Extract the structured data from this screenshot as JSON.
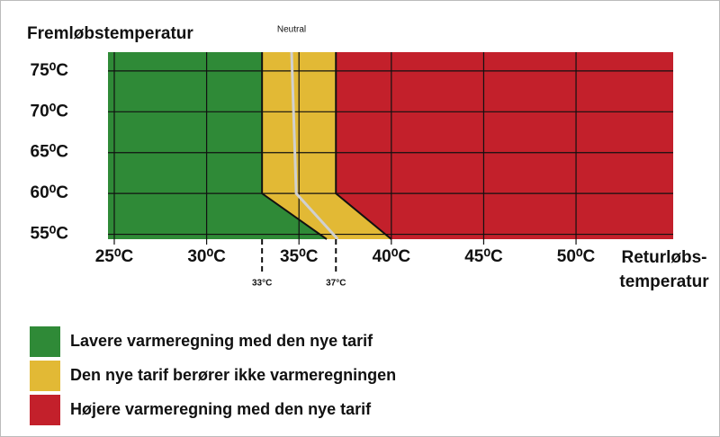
{
  "chart_data": {
    "type": "region",
    "title": "Fremløbstemperatur",
    "x_label_lines": [
      "Returløbs-",
      "temperatur"
    ],
    "xlim": [
      24.66,
      55.26
    ],
    "ylim": [
      54.4,
      77.3
    ],
    "xticks": [
      {
        "value": 25,
        "label": "25⁰C"
      },
      {
        "value": 30,
        "label": "30⁰C"
      },
      {
        "value": 35,
        "label": "35⁰C"
      },
      {
        "value": 40,
        "label": "40⁰C"
      },
      {
        "value": 45,
        "label": "45⁰C"
      },
      {
        "value": 50,
        "label": "50⁰C"
      }
    ],
    "yticks": [
      {
        "value": 55,
        "label": "55⁰C"
      },
      {
        "value": 60,
        "label": "60⁰C"
      },
      {
        "value": 65,
        "label": "65⁰C"
      },
      {
        "value": 70,
        "label": "70⁰C"
      },
      {
        "value": 75,
        "label": "75⁰C"
      }
    ],
    "grid": true,
    "series": [
      {
        "name": "Lavere varmeregning med den nye tarif",
        "color": "#2f8a37",
        "x": [
          33,
          33,
          36.5
        ],
        "y": [
          77.3,
          60,
          54.4
        ]
      },
      {
        "name": "Den nye tarif berører ikke varmeregningen",
        "color": "#e2b935",
        "x": [
          37,
          37,
          40
        ],
        "y": [
          77.3,
          60,
          54.4
        ]
      },
      {
        "name": "Højere varmeregning med den nye tarif",
        "color": "#c3202b"
      }
    ],
    "neutral": {
      "label": "Neutral",
      "x": [
        34.6,
        34.85,
        37.1
      ],
      "y": [
        77.3,
        60,
        54.4
      ]
    },
    "annotations": [
      {
        "value": 33,
        "label": "33°C"
      },
      {
        "value": 37,
        "label": "37°C"
      }
    ]
  }
}
